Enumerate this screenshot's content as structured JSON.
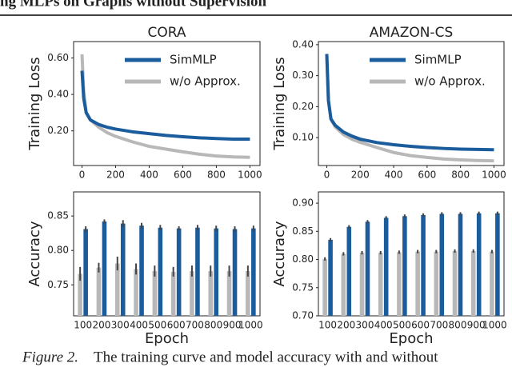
{
  "header": {
    "title": "ng MLPs on Graphs without Supervision"
  },
  "caption": {
    "label": "Figure 2.",
    "text": "The training curve and model accuracy with and without"
  },
  "chart_data": [
    {
      "type": "line",
      "title": "CORA",
      "y_label": "Training Loss",
      "legend": "upper right",
      "xlim": [
        -50,
        1060
      ],
      "xticks": [
        0,
        200,
        400,
        600,
        800,
        1000
      ],
      "ylim": [
        0.01,
        0.69
      ],
      "yticks": [
        {
          "value": 0.2,
          "label": "0.20"
        },
        {
          "value": 0.4,
          "label": "0.40"
        },
        {
          "value": 0.6,
          "label": "0.60"
        }
      ],
      "x": [
        0,
        10,
        25,
        50,
        100,
        150,
        200,
        300,
        400,
        500,
        600,
        700,
        800,
        900,
        1000
      ],
      "series": [
        {
          "name": "SimMLP",
          "color": "#1a5c9c",
          "values": [
            0.53,
            0.38,
            0.3,
            0.26,
            0.235,
            0.22,
            0.21,
            0.195,
            0.185,
            0.175,
            0.168,
            0.162,
            0.158,
            0.155,
            0.155
          ]
        },
        {
          "name": "w/o Approx.",
          "color": "#b8b8b8",
          "values": [
            0.62,
            0.42,
            0.3,
            0.26,
            0.22,
            0.19,
            0.17,
            0.14,
            0.115,
            0.1,
            0.085,
            0.072,
            0.062,
            0.057,
            0.055
          ]
        }
      ]
    },
    {
      "type": "line",
      "title": "AMAZON-CS",
      "y_label": "Training Loss",
      "legend": "upper right",
      "xlim": [
        -50,
        1060
      ],
      "xticks": [
        0,
        200,
        400,
        600,
        800,
        1000
      ],
      "ylim": [
        0.01,
        0.41
      ],
      "yticks": [
        {
          "value": 0.1,
          "label": "0.10"
        },
        {
          "value": 0.2,
          "label": "0.20"
        },
        {
          "value": 0.3,
          "label": "0.30"
        },
        {
          "value": 0.4,
          "label": "0.40"
        }
      ],
      "x": [
        0,
        10,
        25,
        50,
        100,
        150,
        200,
        300,
        400,
        500,
        600,
        700,
        800,
        900,
        1000
      ],
      "series": [
        {
          "name": "SimMLP",
          "color": "#1a5c9c",
          "values": [
            0.37,
            0.22,
            0.16,
            0.14,
            0.118,
            0.105,
            0.095,
            0.084,
            0.077,
            0.072,
            0.068,
            0.065,
            0.063,
            0.062,
            0.061
          ]
        },
        {
          "name": "w/o Approx.",
          "color": "#b8b8b8",
          "values": [
            0.37,
            0.22,
            0.16,
            0.135,
            0.11,
            0.095,
            0.085,
            0.068,
            0.052,
            0.042,
            0.036,
            0.031,
            0.028,
            0.026,
            0.025
          ]
        }
      ]
    },
    {
      "type": "bar",
      "y_label": "Accuracy",
      "x_label": "Epoch",
      "ylim": [
        0.705,
        0.885
      ],
      "yticks": [
        0.75,
        {
          "value": 0.8,
          "label": "0.80"
        },
        0.85
      ],
      "categories": [
        "100",
        "200",
        "300",
        "400",
        "500",
        "600",
        "700",
        "800",
        "900",
        "1000"
      ],
      "series": [
        {
          "color": "#b8b8b8",
          "values": [
            0.766,
            0.775,
            0.781,
            0.773,
            0.77,
            0.769,
            0.77,
            0.77,
            0.77,
            0.77
          ],
          "errors": [
            0.01,
            0.007,
            0.01,
            0.008,
            0.008,
            0.007,
            0.008,
            0.008,
            0.008,
            0.008
          ]
        },
        {
          "color": "#1a5c9c",
          "values": [
            0.831,
            0.842,
            0.839,
            0.836,
            0.833,
            0.832,
            0.833,
            0.832,
            0.831,
            0.832
          ],
          "errors": [
            0.004,
            0.003,
            0.005,
            0.004,
            0.004,
            0.003,
            0.004,
            0.004,
            0.004,
            0.004
          ]
        }
      ]
    },
    {
      "type": "bar",
      "y_label": "Accuracy",
      "x_label": "Epoch",
      "ylim": [
        0.7,
        0.92
      ],
      "yticks": [
        {
          "value": 0.7,
          "label": "0.70"
        },
        0.75,
        {
          "value": 0.8,
          "label": "0.80"
        },
        0.85,
        {
          "value": 0.9,
          "label": "0.90"
        }
      ],
      "categories": [
        "100",
        "200",
        "300",
        "400",
        "500",
        "600",
        "700",
        "800",
        "900",
        "1000"
      ],
      "series": [
        {
          "color": "#b8b8b8",
          "values": [
            0.801,
            0.81,
            0.812,
            0.812,
            0.813,
            0.814,
            0.814,
            0.815,
            0.815,
            0.814
          ],
          "errors": [
            0.003,
            0.003,
            0.003,
            0.003,
            0.003,
            0.003,
            0.003,
            0.003,
            0.003,
            0.003
          ]
        },
        {
          "color": "#1a5c9c",
          "values": [
            0.835,
            0.858,
            0.867,
            0.874,
            0.877,
            0.879,
            0.881,
            0.881,
            0.882,
            0.882
          ],
          "errors": [
            0.003,
            0.003,
            0.003,
            0.003,
            0.003,
            0.003,
            0.003,
            0.003,
            0.003,
            0.003
          ]
        }
      ]
    }
  ]
}
